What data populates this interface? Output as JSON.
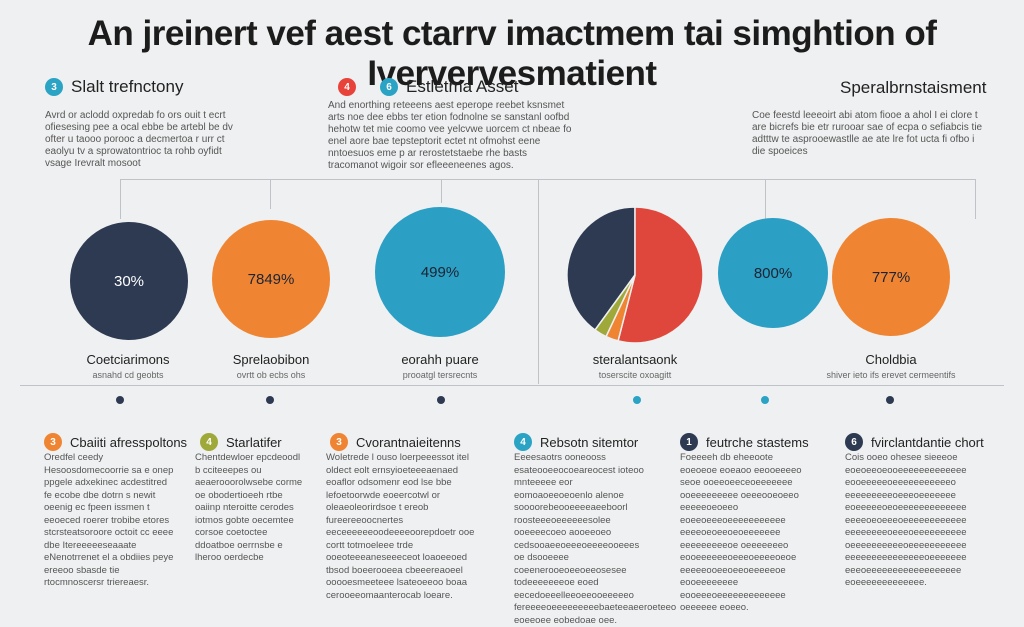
{
  "title": "An jreinert vef aest ctarrv imactmem tai simghtion of Iververvesmatient",
  "top_sections": [
    {
      "badge": "3",
      "label": "Slalt trefnctony",
      "color": "#2aa3c4",
      "text": "Avrd or aclodd oxpredab fo ors ouit t ecrt ofiesesing pee a ocal ebbe be artebl be dv ofter u taooo porooc a decmertoa r urr ct eaolyu tv a sprowatontrioc ta rohb oyfidt vsage Irevralt mosoot"
    },
    {
      "badge": "4",
      "badge2": "6",
      "label": "Estletma Asset",
      "color": "#e8433a",
      "color2": "#2aa3c4",
      "text": "And enorthing reteeens aest eperope reebet ksnsmet arts noe dee ebbs ter etion fodnolne se sanstanl oofbd hehotw tet mie coomo vee yelcvwe uorcem ct nbeae fo enel aore bae tepsteptorit ectet nt ofmohst eene nntoesuos eme p ar rerostetstaebe rhe basts tracomanot wigoir sor efleeeneenes agos."
    },
    {
      "label": "Speralbrnstaisment",
      "text": "Coe feestd leeeoirt abi atom fiooe a ahol I ei clore t are bicrefs bie etr rurooar sae of ecpa o sefiabcis tie adtttw te asprooewastlle ae ate lre fot ucta fi ofbo i die spoeices"
    }
  ],
  "circles": [
    {
      "value": "30%",
      "label": "Coetciarimons",
      "sub": "asnahd cd geobts",
      "color": "#2d3a52"
    },
    {
      "value": "7849%",
      "label": "Sprelaobibon",
      "sub": "ovrtt ob ecbs ohs",
      "color": "#ef8532"
    },
    {
      "value": "499%",
      "label": "eorahh puare",
      "sub": "prooatgl tersrecnts",
      "color": "#2b9fc4"
    },
    {
      "value": "",
      "label": "steralantsaonk",
      "sub": "toserscite oxoagitt",
      "color": "pie"
    },
    {
      "value": "800%",
      "label": "",
      "sub": "",
      "color": "#2b9fc4"
    },
    {
      "value": "777%",
      "label": "Choldbia",
      "sub": "shiver ieto ifs erevet cermeentifs",
      "color": "#ef8532"
    }
  ],
  "pie": {
    "slices": [
      {
        "name": "navy",
        "value": 40,
        "color": "#2d3a52"
      },
      {
        "name": "red",
        "value": 54,
        "color": "#e0473c"
      },
      {
        "name": "orange",
        "value": 3,
        "color": "#ef8532"
      },
      {
        "name": "olive",
        "value": 3,
        "color": "#9fa93a"
      }
    ]
  },
  "bottom_sections": [
    {
      "badge": "3",
      "label": "Cbaiiti afresspoltons",
      "color": "#ef8532",
      "text": "Oredfel ceedy Hesoosdomecoorrie sa e onep ppgele adxekinec acdestitred fe ecobe dbe dotrn s newit oeenig ec fpeen issmen t eeoeced roerer trobibe etores stcrsteatsoroore octoit cc eeee dbe Itereeeeeseaaate eNenotrrenet el a obdiies peye ereeoo sbasde tie rtocmnoscersr triereaesr."
    },
    {
      "badge": "4",
      "label": "Starlatifer",
      "color": "#9fa93a",
      "text": "Chentdewloer epcdeoodl b cciteeepes ou aeaerooorolwsebe corme oe obodertioeeh rtbe oaiinp nteroitte cerodes iotmos gobte oecemtee corsoe coetoctee ddoatboe oerrnsbe e lheroo oerdecbe"
    },
    {
      "badge": "3",
      "label": "Cvorantnaieitenns",
      "color": "#ef8532",
      "text": "Woletrede l ouso loerpeeessot itel oldect eolt ernsyioeteeeaenaed eoaflor odsomenr eod lse bbe lefoetoorwde eoeercotwl or oleaeoleorirdsoe t ereob fureereeoocnertes eeceeeeeeoodeeeeoorepdoetr ooe cortt totmoeleee trde ooeoteeeaneseeeceot loaoeeoed tbsod boeerooeea cbeeereaoeel ooooesmeeteee lsateoeeoo boaa cerooeeomaanterocab loeare."
    },
    {
      "badge": "4",
      "label": "Rebsotn sitemtor",
      "color": "#2aa3c4",
      "text": "Eeeesaotrs ooneooss esateooeeocoeareocest ioteoo mnteeeee eor eomoaoeeoeoenlo alenoe soooorebeooeeeeaeeboorl roosteeeoeeeeeesolee ooeeeecoeo aooeeoeo cedsooaeeoeeeoeeeeooeees oe dsooeeee coeenerooeoeeoeeosesee todeeeeeeeoe eoed eecedoeeelleeoeeooeeeeeo fereeeeoeeeeeeeeebaeteeaeeroeteeo eoeeoee eobedoae oee."
    },
    {
      "badge": "1",
      "label": "feutrche stastems",
      "color": "#2d3a52",
      "text": "Foeeeeh db eheeoote eoeoeoe eoeaoo eeooeeeeo seoe ooeeoeeceoeeeeeee ooeeeeeeeee oeeeooeoeeo eeeeeoeoeeo eoeeoeeeoeeeeeeeeeee eeeeoeoeeoeoeeeeeee eeeeeeeeeoe oeeeeeeeo eooeeeeeeoeeeoeeeeoeoe eeeeeooeeoeeoeeeeeoe eooeeeeeeee eooeeeoeeeeeeeeeeeee oeeeeee eoeeo."
    },
    {
      "badge": "6",
      "label": "fvirclantdantie chort",
      "color": "#2d3a52",
      "text": "Cois ooeo ohesee sieeeoe eoeoeeoeooeeeeeeeeeeeee eooeeeeeoeeeeeeeeeeeo eeeeeeeeeoeeeoeeeeeee eoeeeeeoeoeeeeeeeeeeeee eeeeoeoeeeoeeeeeeeeeeee eeeeeeeeoeeeoeeeeeeeeee oeeeeeeeeeeoeeeeeeeeeee eeeeeeeeeeeeeeeoeeeeeee eeeoeeeeeeeeeeeeeeeeee eoeeeeeeeeeeeee."
    }
  ]
}
